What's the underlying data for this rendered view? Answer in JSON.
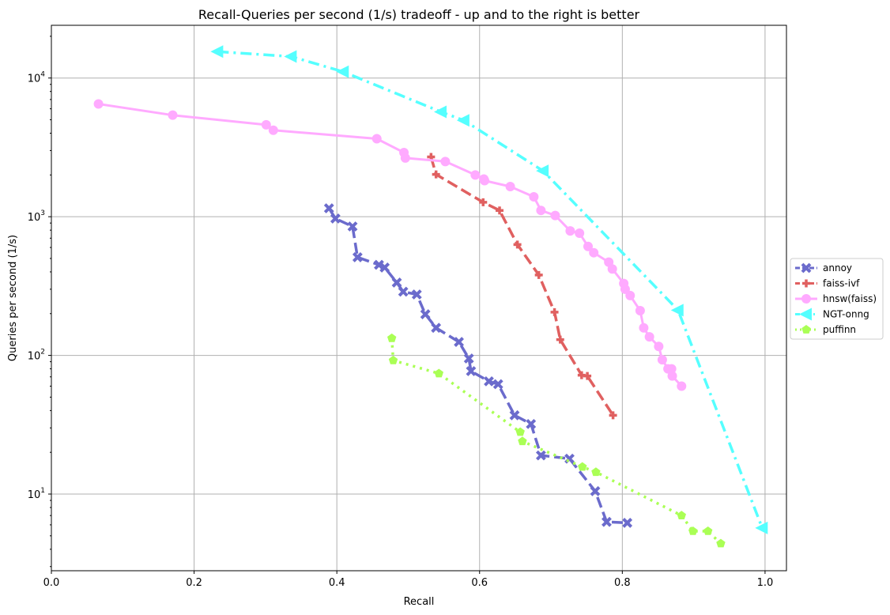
{
  "chart_data": {
    "type": "line",
    "title": "Recall-Queries per second (1/s) tradeoff - up and to the right is better",
    "xlabel": "Recall",
    "ylabel": "Queries per second (1/s)",
    "xscale": "linear",
    "yscale": "log",
    "xlim": [
      0.0,
      1.03
    ],
    "ylim": [
      2.8,
      24000
    ],
    "xticks": [
      0.0,
      0.2,
      0.4,
      0.6,
      0.8,
      1.0
    ],
    "xtick_labels": [
      "0.0",
      "0.2",
      "0.4",
      "0.6",
      "0.8",
      "1.0"
    ],
    "yticks": [
      10,
      100,
      1000,
      10000
    ],
    "ytick_labels": [
      {
        "base": "10",
        "exp": "1"
      },
      {
        "base": "10",
        "exp": "2"
      },
      {
        "base": "10",
        "exp": "3"
      },
      {
        "base": "10",
        "exp": "4"
      }
    ],
    "grid": true,
    "legend_position": "right-outside",
    "series": [
      {
        "name": "annoy",
        "color": "#6b6bcc",
        "linestyle": "dashed",
        "marker": "x-thick",
        "x": [
          0.389,
          0.398,
          0.422,
          0.429,
          0.459,
          0.467,
          0.484,
          0.493,
          0.512,
          0.524,
          0.539,
          0.571,
          0.585,
          0.588,
          0.613,
          0.626,
          0.649,
          0.672,
          0.686,
          0.726,
          0.762,
          0.778,
          0.807
        ],
        "y": [
          1150,
          970,
          850,
          510,
          450,
          430,
          335,
          288,
          275,
          198,
          158,
          125,
          95,
          77,
          65,
          62,
          37,
          32,
          19,
          18,
          10.5,
          6.3,
          6.2
        ]
      },
      {
        "name": "faiss-ivf",
        "color": "#e06060",
        "linestyle": "dashed",
        "marker": "plus-thick",
        "x": [
          0.532,
          0.539,
          0.605,
          0.628,
          0.653,
          0.683,
          0.705,
          0.713,
          0.743,
          0.751,
          0.787
        ],
        "y": [
          2700,
          2020,
          1270,
          1110,
          630,
          380,
          205,
          130,
          72,
          71,
          37
        ]
      },
      {
        "name": "hnsw(faiss)",
        "color": "#ffaaff",
        "linestyle": "solid",
        "marker": "circle",
        "x": [
          0.066,
          0.17,
          0.301,
          0.311,
          0.456,
          0.494,
          0.496,
          0.552,
          0.594,
          0.606,
          0.607,
          0.643,
          0.676,
          0.686,
          0.706,
          0.727,
          0.74,
          0.752,
          0.76,
          0.781,
          0.786,
          0.802,
          0.804,
          0.811,
          0.825,
          0.83,
          0.838,
          0.851,
          0.856,
          0.864,
          0.869,
          0.87,
          0.883
        ],
        "y": [
          6500,
          5400,
          4600,
          4200,
          3650,
          2900,
          2650,
          2500,
          2000,
          1870,
          1820,
          1650,
          1390,
          1110,
          1020,
          790,
          760,
          610,
          550,
          470,
          420,
          330,
          300,
          270,
          210,
          158,
          136,
          116,
          93,
          80,
          80,
          71,
          60
        ]
      },
      {
        "name": "NGT-onng",
        "color": "#55ffff",
        "linestyle": "dashdot",
        "marker": "triangle-left",
        "x": [
          0.233,
          0.336,
          0.409,
          0.546,
          0.578,
          0.689,
          0.878,
          0.996
        ],
        "y": [
          15500,
          14300,
          11100,
          5700,
          4950,
          2140,
          212,
          5.7
        ]
      },
      {
        "name": "puffinn",
        "color": "#aaff55",
        "linestyle": "dotted",
        "marker": "pentagon",
        "x": [
          0.477,
          0.479,
          0.543,
          0.657,
          0.66,
          0.744,
          0.763,
          0.883,
          0.899,
          0.92,
          0.938
        ],
        "y": [
          133,
          92,
          74,
          28,
          24,
          15.7,
          14.4,
          7.0,
          5.4,
          5.4,
          4.4
        ]
      }
    ]
  }
}
